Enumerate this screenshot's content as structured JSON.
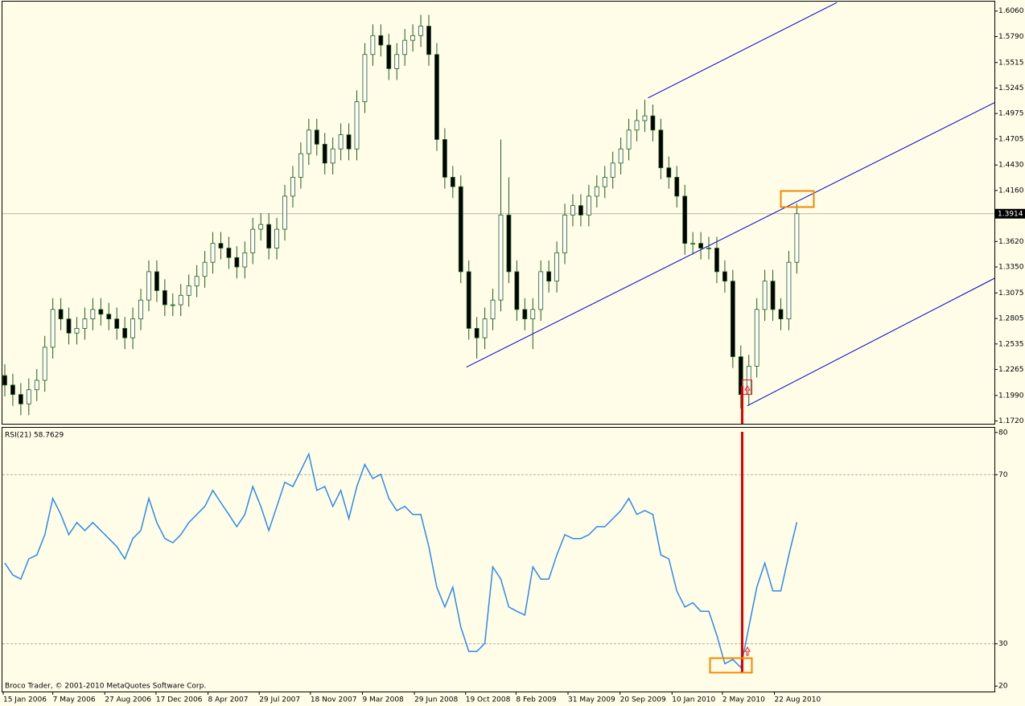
{
  "chart_data": [
    {
      "type": "candlestick",
      "xlim": [
        -0.3,
        123.7
      ],
      "xticks": [
        {
          "value": -0.2,
          "label": "15 Jan 2006"
        },
        {
          "value": 6.0,
          "label": "7 May 2006"
        },
        {
          "value": 12.5,
          "label": "27 Aug 2006"
        },
        {
          "value": 18.9,
          "label": "17 Dec 2006"
        },
        {
          "value": 25.4,
          "label": "8 Apr 2007"
        },
        {
          "value": 31.8,
          "label": "29 Jul 2007"
        },
        {
          "value": 38.2,
          "label": "18 Nov 2007"
        },
        {
          "value": 44.7,
          "label": "9 Mar 2008"
        },
        {
          "value": 51.2,
          "label": "29 Jun 2008"
        },
        {
          "value": 57.6,
          "label": "19 Oct 2008"
        },
        {
          "value": 63.9,
          "label": "8 Feb 2009"
        },
        {
          "value": 70.4,
          "label": "31 May 2009"
        },
        {
          "value": 76.9,
          "label": "20 Sep 2009"
        },
        {
          "value": 83.4,
          "label": "10 Jan 2010"
        },
        {
          "value": 89.7,
          "label": "2 May 2010"
        },
        {
          "value": 96.2,
          "label": "22 Aug 2010"
        }
      ],
      "ylim": [
        1.169,
        1.616
      ],
      "yticks": [
        {
          "value": 1.606,
          "label": "1.6060"
        },
        {
          "value": 1.579,
          "label": "1.5790"
        },
        {
          "value": 1.5515,
          "label": "1.5515"
        },
        {
          "value": 1.5245,
          "label": "1.5245"
        },
        {
          "value": 1.4975,
          "label": "1.4975"
        },
        {
          "value": 1.4705,
          "label": "1.4705"
        },
        {
          "value": 1.443,
          "label": "1.4430"
        },
        {
          "value": 1.416,
          "label": "1.4160"
        },
        {
          "value": 1.362,
          "label": "1.3620"
        },
        {
          "value": 1.335,
          "label": "1.3350"
        },
        {
          "value": 1.3075,
          "label": "1.3075"
        },
        {
          "value": 1.2805,
          "label": "1.2805"
        },
        {
          "value": 1.2535,
          "label": "1.2535"
        },
        {
          "value": 1.2265,
          "label": "1.2265"
        },
        {
          "value": 1.199,
          "label": "1.1990"
        },
        {
          "value": 1.172,
          "label": "1.1720"
        }
      ],
      "last_price": {
        "value": 1.3914,
        "label": "1.3914"
      },
      "up_color": "#ffffff",
      "down_color": "#000000",
      "wick_color": "#1d5e1d",
      "open": [
        1.22,
        1.21,
        1.2,
        1.19,
        1.205,
        1.215,
        1.25,
        1.29,
        1.28,
        1.265,
        1.27,
        1.28,
        1.29,
        1.285,
        1.28,
        1.27,
        1.26,
        1.28,
        1.3,
        1.33,
        1.31,
        1.295,
        1.295,
        1.305,
        1.315,
        1.325,
        1.34,
        1.36,
        1.355,
        1.345,
        1.335,
        1.35,
        1.375,
        1.38,
        1.355,
        1.375,
        1.41,
        1.43,
        1.455,
        1.48,
        1.465,
        1.445,
        1.46,
        1.475,
        1.46,
        1.51,
        1.56,
        1.58,
        1.57,
        1.545,
        1.56,
        1.575,
        1.58,
        1.59,
        1.56,
        1.47,
        1.43,
        1.42,
        1.33,
        1.27,
        1.26,
        1.28,
        1.3,
        1.39,
        1.33,
        1.29,
        1.28,
        1.29,
        1.33,
        1.32,
        1.35,
        1.39,
        1.4,
        1.39,
        1.41,
        1.42,
        1.43,
        1.445,
        1.46,
        1.48,
        1.49,
        1.495,
        1.48,
        1.44,
        1.43,
        1.41,
        1.36,
        1.36,
        1.355,
        1.355,
        1.33,
        1.32,
        1.24,
        1.2,
        1.23,
        1.29,
        1.32,
        1.29,
        1.28,
        1.34
      ],
      "high": [
        1.232,
        1.222,
        1.212,
        1.217,
        1.227,
        1.262,
        1.302,
        1.302,
        1.292,
        1.282,
        1.292,
        1.302,
        1.302,
        1.297,
        1.292,
        1.282,
        1.292,
        1.312,
        1.342,
        1.342,
        1.322,
        1.307,
        1.317,
        1.327,
        1.337,
        1.352,
        1.372,
        1.372,
        1.367,
        1.357,
        1.362,
        1.387,
        1.392,
        1.392,
        1.387,
        1.422,
        1.442,
        1.467,
        1.492,
        1.492,
        1.477,
        1.472,
        1.487,
        1.487,
        1.522,
        1.572,
        1.592,
        1.592,
        1.582,
        1.572,
        1.587,
        1.592,
        1.602,
        1.602,
        1.572,
        1.482,
        1.442,
        1.432,
        1.342,
        1.282,
        1.292,
        1.312,
        1.47,
        1.43,
        1.342,
        1.302,
        1.302,
        1.342,
        1.342,
        1.362,
        1.402,
        1.412,
        1.412,
        1.422,
        1.432,
        1.442,
        1.457,
        1.472,
        1.492,
        1.502,
        1.512,
        1.507,
        1.492,
        1.452,
        1.442,
        1.422,
        1.372,
        1.372,
        1.367,
        1.367,
        1.342,
        1.332,
        1.252,
        1.242,
        1.302,
        1.332,
        1.332,
        1.302,
        1.352,
        1.402
      ],
      "low": [
        1.198,
        1.188,
        1.178,
        1.178,
        1.193,
        1.203,
        1.238,
        1.268,
        1.253,
        1.253,
        1.258,
        1.268,
        1.273,
        1.268,
        1.258,
        1.248,
        1.248,
        1.268,
        1.288,
        1.298,
        1.283,
        1.283,
        1.283,
        1.293,
        1.303,
        1.313,
        1.328,
        1.343,
        1.333,
        1.323,
        1.323,
        1.338,
        1.363,
        1.343,
        1.343,
        1.363,
        1.398,
        1.418,
        1.443,
        1.453,
        1.433,
        1.433,
        1.448,
        1.448,
        1.448,
        1.498,
        1.548,
        1.558,
        1.533,
        1.533,
        1.548,
        1.563,
        1.568,
        1.548,
        1.458,
        1.418,
        1.408,
        1.318,
        1.258,
        1.238,
        1.248,
        1.268,
        1.288,
        1.318,
        1.278,
        1.268,
        1.248,
        1.278,
        1.308,
        1.308,
        1.338,
        1.378,
        1.378,
        1.378,
        1.398,
        1.408,
        1.418,
        1.433,
        1.448,
        1.468,
        1.478,
        1.468,
        1.428,
        1.418,
        1.398,
        1.348,
        1.348,
        1.343,
        1.343,
        1.318,
        1.308,
        1.228,
        1.185,
        1.188,
        1.218,
        1.278,
        1.278,
        1.268,
        1.268,
        1.328
      ],
      "close": [
        1.21,
        1.2,
        1.19,
        1.205,
        1.215,
        1.25,
        1.29,
        1.28,
        1.265,
        1.27,
        1.28,
        1.29,
        1.285,
        1.28,
        1.27,
        1.26,
        1.28,
        1.3,
        1.33,
        1.31,
        1.295,
        1.295,
        1.305,
        1.315,
        1.325,
        1.34,
        1.36,
        1.355,
        1.345,
        1.335,
        1.35,
        1.375,
        1.38,
        1.355,
        1.375,
        1.41,
        1.43,
        1.455,
        1.48,
        1.465,
        1.445,
        1.46,
        1.475,
        1.46,
        1.51,
        1.56,
        1.58,
        1.57,
        1.545,
        1.56,
        1.575,
        1.58,
        1.59,
        1.56,
        1.47,
        1.43,
        1.42,
        1.33,
        1.27,
        1.26,
        1.28,
        1.3,
        1.39,
        1.33,
        1.29,
        1.28,
        1.29,
        1.33,
        1.32,
        1.35,
        1.39,
        1.4,
        1.39,
        1.41,
        1.42,
        1.43,
        1.445,
        1.46,
        1.48,
        1.49,
        1.495,
        1.48,
        1.44,
        1.43,
        1.41,
        1.36,
        1.36,
        1.355,
        1.355,
        1.33,
        1.32,
        1.24,
        1.2,
        1.23,
        1.29,
        1.32,
        1.29,
        1.28,
        1.34,
        1.3914
      ],
      "trendlines": [
        {
          "color": "#0000cc",
          "x": [
            57.7,
            123.7
          ],
          "y": [
            1.229,
            1.509
          ]
        },
        {
          "color": "#0000cc",
          "x": [
            80.4,
            104.0
          ],
          "y": [
            1.514,
            1.615
          ]
        },
        {
          "color": "#0000cc",
          "x": [
            92.8,
            123.7
          ],
          "y": [
            1.188,
            1.323
          ]
        }
      ]
    },
    {
      "type": "line",
      "title": "RSI(21) 58.7629",
      "color": "#2a8be8",
      "xlim": [
        -0.3,
        123.7
      ],
      "ylim": [
        18.9,
        81.1
      ],
      "yticks": [
        20,
        30,
        70,
        80
      ],
      "levels": [
        30,
        70
      ],
      "values": [
        49.1,
        46.3,
        45.3,
        50.1,
        51.0,
        55.8,
        64.4,
        60.6,
        55.8,
        58.7,
        56.8,
        58.7,
        56.8,
        54.9,
        53.0,
        50.1,
        54.9,
        56.8,
        64.4,
        58.7,
        54.9,
        53.9,
        55.8,
        58.7,
        60.6,
        62.5,
        66.3,
        63.4,
        60.6,
        57.7,
        60.6,
        67.2,
        62.5,
        56.8,
        62.5,
        68.2,
        67.2,
        71.0,
        74.9,
        66.3,
        67.2,
        62.5,
        66.3,
        59.6,
        67.2,
        72.4,
        69.1,
        70.1,
        64.4,
        61.5,
        62.5,
        60.6,
        60.6,
        53.0,
        43.4,
        38.7,
        43.4,
        33.9,
        28.2,
        28.2,
        30.1,
        48.2,
        45.3,
        38.7,
        37.7,
        36.8,
        48.2,
        45.3,
        45.3,
        51.0,
        55.8,
        54.9,
        54.9,
        55.8,
        57.7,
        57.7,
        59.6,
        61.5,
        64.4,
        60.6,
        61.5,
        60.6,
        51.0,
        50.1,
        42.5,
        38.7,
        39.7,
        37.7,
        37.7,
        32.0,
        25.3,
        26.3,
        24.4,
        33.9,
        43.4,
        49.1,
        42.5,
        42.5,
        51.0,
        58.7629
      ]
    }
  ],
  "footer": "Broco Trader, © 2001-2010 MetaQuotes Software Corp."
}
